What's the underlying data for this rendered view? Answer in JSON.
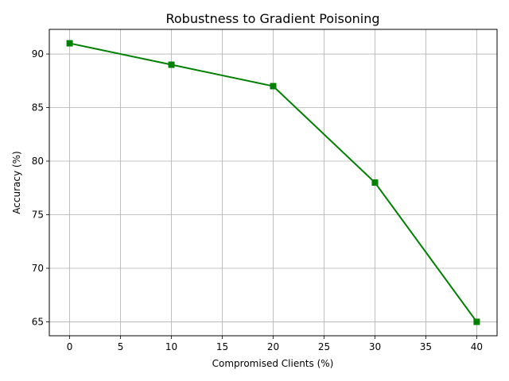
{
  "chart_data": {
    "type": "line",
    "title": "Robustness to Gradient Poisoning",
    "xlabel": "Compromised Clients (%)",
    "ylabel": "Accuracy (%)",
    "x": [
      0,
      10,
      20,
      30,
      40
    ],
    "series": [
      {
        "name": "Accuracy",
        "values": [
          91,
          89,
          87,
          78,
          65
        ],
        "color": "#008000",
        "marker": "square"
      }
    ],
    "xticks": [
      0,
      5,
      10,
      15,
      20,
      25,
      30,
      35,
      40
    ],
    "yticks": [
      65,
      70,
      75,
      80,
      85,
      90
    ],
    "xlim": [
      -2,
      42
    ],
    "ylim": [
      63.7,
      92.3
    ],
    "grid": true,
    "legend": null
  },
  "colors": {
    "line": "#008000",
    "grid": "#b0b0b0",
    "axes": "#000000"
  }
}
